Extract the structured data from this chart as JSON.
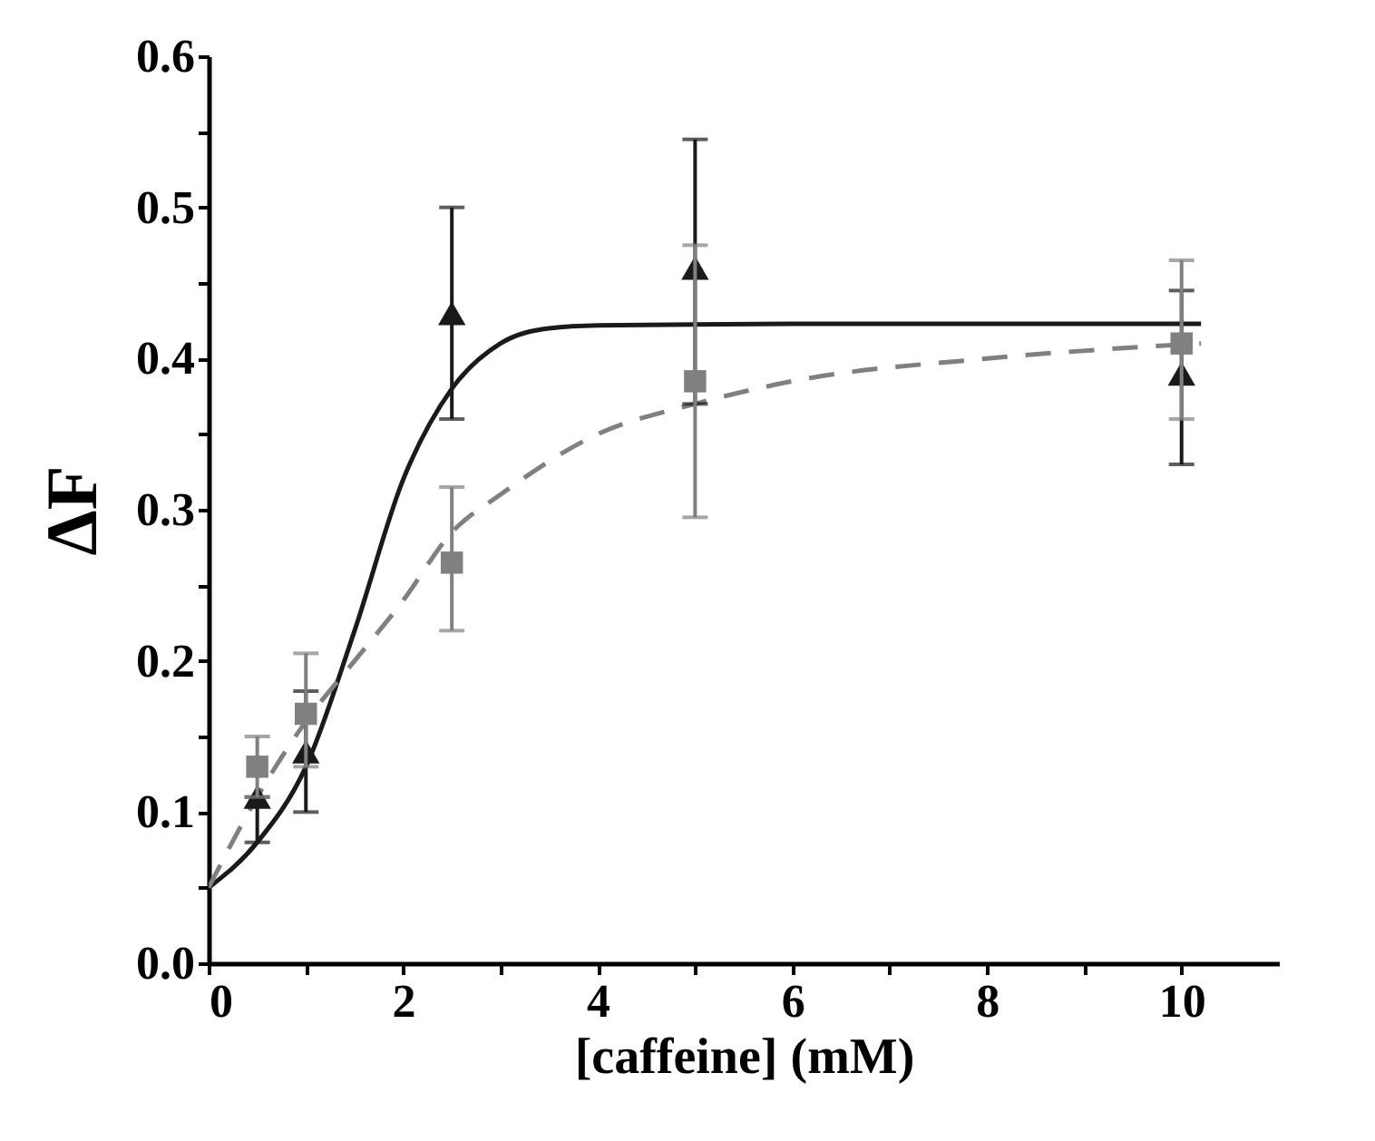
{
  "chart_data": {
    "type": "scatter",
    "xlabel": "[caffeine] (mM)",
    "ylabel": "ΔF",
    "xlim": [
      0,
      11
    ],
    "ylim": [
      0,
      0.6
    ],
    "xticks": [
      0,
      {
        "value": 1,
        "label": null
      },
      2,
      {
        "value": 3,
        "label": null
      },
      4,
      {
        "value": 5,
        "label": null
      },
      6,
      {
        "value": 7,
        "label": null
      },
      8,
      {
        "value": 9,
        "label": null
      },
      10
    ],
    "yticks": [
      {
        "value": 0,
        "label": "0.0"
      },
      {
        "value": 0.05,
        "label": null
      },
      0.1,
      {
        "value": 0.15,
        "label": null
      },
      0.2,
      {
        "value": 0.25,
        "label": null
      },
      0.3,
      {
        "value": 0.35,
        "label": null
      },
      0.4,
      {
        "value": 0.45,
        "label": null
      },
      0.5,
      {
        "value": 0.55,
        "label": null
      },
      0.6
    ],
    "grid": false,
    "series": [
      {
        "type": "line",
        "color": "#1a1a1a",
        "line_style": "solid",
        "marker": "none",
        "x": [
          0,
          0.5,
          1,
          1.5,
          2,
          2.5,
          3,
          3.5,
          4,
          6,
          8,
          10.2
        ],
        "values": [
          0.05,
          0.08,
          0.13,
          0.22,
          0.32,
          0.38,
          0.41,
          0.42,
          0.422,
          0.423,
          0.423,
          0.423
        ]
      },
      {
        "type": "line",
        "color": "#808080",
        "line_style": "dashed",
        "marker": "none",
        "x": [
          0,
          0.5,
          1,
          1.5,
          2,
          2.5,
          3,
          4,
          5,
          6,
          8,
          10.2
        ],
        "values": [
          0.05,
          0.11,
          0.16,
          0.2,
          0.24,
          0.285,
          0.31,
          0.35,
          0.37,
          0.385,
          0.4,
          0.41
        ]
      },
      {
        "color": "#1a1a1a",
        "marker": "triangle",
        "x": [
          0.5,
          1,
          2.5,
          5,
          10
        ],
        "values": [
          0.11,
          0.14,
          0.43,
          0.46,
          0.39
        ],
        "errors": [
          [
            0.08,
            0.11
          ],
          [
            0.1,
            0.18
          ],
          [
            0.36,
            0.5
          ],
          [
            0.37,
            0.545
          ],
          [
            0.33,
            0.445
          ]
        ]
      },
      {
        "color": "#808080",
        "marker": "square",
        "x": [
          0.5,
          1,
          2.5,
          5,
          10
        ],
        "values": [
          0.13,
          0.165,
          0.265,
          0.385,
          0.41
        ],
        "errors": [
          [
            0.11,
            0.15
          ],
          [
            0.13,
            0.205
          ],
          [
            0.22,
            0.315
          ],
          [
            0.295,
            0.475
          ],
          [
            0.36,
            0.465
          ]
        ]
      }
    ]
  }
}
